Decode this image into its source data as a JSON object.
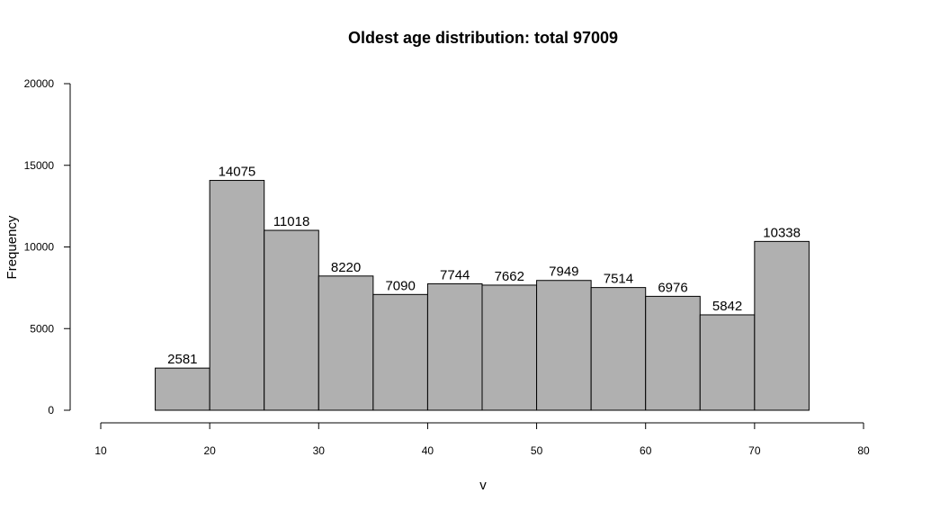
{
  "chart_data": {
    "type": "bar",
    "title": "Oldest age distribution: total  97009",
    "xlabel": "v",
    "ylabel": "Frequency",
    "xlim": [
      10,
      80
    ],
    "ylim": [
      0,
      20000
    ],
    "x_ticks": [
      "10",
      "20",
      "30",
      "40",
      "50",
      "60",
      "70",
      "80"
    ],
    "y_ticks": [
      "0",
      "5000",
      "10000",
      "15000",
      "20000"
    ],
    "bin_edges": [
      15,
      20,
      25,
      30,
      35,
      40,
      45,
      50,
      55,
      60,
      65,
      70,
      75
    ],
    "values": [
      2581,
      14075,
      11018,
      8220,
      7090,
      7744,
      7662,
      7949,
      7514,
      6976,
      5842,
      10338
    ],
    "data_labels": [
      "2581",
      "14075",
      "11018",
      "8220",
      "7090",
      "7744",
      "7662",
      "7949",
      "7514",
      "6976",
      "5842",
      "10338"
    ],
    "bar_color": "#b0b0b0",
    "grid": false,
    "legend": "none"
  }
}
